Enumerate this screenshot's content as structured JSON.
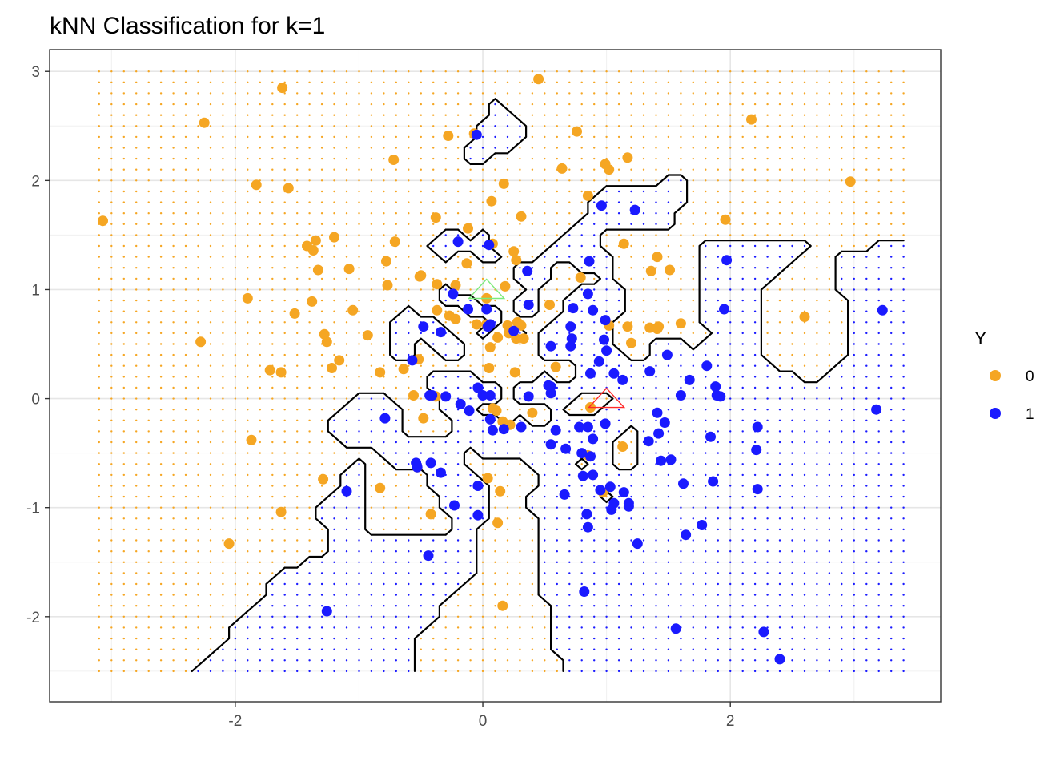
{
  "chart_data": {
    "type": "scatter",
    "title": "kNN Classification for k=1",
    "xlabel": "",
    "ylabel": "",
    "xlim": [
      -3.5,
      3.7
    ],
    "ylim": [
      -2.78,
      3.2
    ],
    "x_ticks": [
      -2,
      0,
      2
    ],
    "x_tick_labels": [
      "-2",
      "0",
      "2"
    ],
    "y_ticks": [
      -2,
      -1,
      0,
      1,
      2,
      3
    ],
    "y_tick_labels": [
      "-2",
      "-1",
      "0",
      "1",
      "2",
      "3"
    ],
    "grid": true,
    "theme": "black-and-white panel with light grey grid",
    "legend": {
      "title": "Y",
      "placement": "right",
      "entries": [
        {
          "label": "0",
          "color": "#F5A623"
        },
        {
          "label": "1",
          "color": "#1A1AFF"
        }
      ]
    },
    "colors": {
      "class0": "#F5A623",
      "class1": "#1A1AFF",
      "boundary": "#000000",
      "test_green": "#7CEB7C",
      "test_red": "#FF2A2A"
    },
    "grid_points": {
      "x_start": -3.1,
      "x_step": 0.1,
      "x_count": 66,
      "y_start": -2.5,
      "y_step": 0.1,
      "y_count": 56,
      "note_rule": "each background dot is colored by the 1-nearest-neighbour class of the training points"
    },
    "test_points": [
      {
        "x": 0.03,
        "y": 1.0,
        "marker": "open-triangle",
        "color": "#7CEB7C"
      },
      {
        "x": 1.0,
        "y": 0.0,
        "marker": "open-triangle",
        "color": "#FF2A2A"
      }
    ],
    "series": [
      {
        "name": "0",
        "points": [
          [
            -3.07,
            1.63
          ],
          [
            -2.25,
            2.53
          ],
          [
            -1.62,
            2.85
          ],
          [
            -1.83,
            1.96
          ],
          [
            -1.57,
            1.93
          ],
          [
            -0.72,
            2.19
          ],
          [
            -0.28,
            2.41
          ],
          [
            -0.07,
            2.43
          ],
          [
            0.45,
            2.93
          ],
          [
            0.76,
            2.45
          ],
          [
            -1.9,
            0.92
          ],
          [
            -1.63,
            0.24
          ],
          [
            -1.72,
            0.26
          ],
          [
            -2.28,
            0.52
          ],
          [
            -1.52,
            0.78
          ],
          [
            -1.42,
            1.4
          ],
          [
            -1.35,
            1.45
          ],
          [
            -1.33,
            1.18
          ],
          [
            -1.37,
            1.36
          ],
          [
            -1.2,
            1.48
          ],
          [
            -1.08,
            1.19
          ],
          [
            -1.38,
            0.89
          ],
          [
            -1.28,
            0.59
          ],
          [
            -1.26,
            0.52
          ],
          [
            -1.22,
            0.28
          ],
          [
            -1.16,
            0.35
          ],
          [
            -1.05,
            0.81
          ],
          [
            -0.93,
            0.58
          ],
          [
            -0.78,
            1.26
          ],
          [
            -0.77,
            1.04
          ],
          [
            -0.71,
            1.44
          ],
          [
            -0.51,
            1.12
          ],
          [
            -0.5,
            1.13
          ],
          [
            -0.38,
            1.66
          ],
          [
            -0.37,
            1.05
          ],
          [
            -0.37,
            0.81
          ],
          [
            -0.22,
            1.04
          ],
          [
            -0.12,
            1.56
          ],
          [
            -0.13,
            1.24
          ],
          [
            -0.05,
            0.68
          ],
          [
            0.07,
            1.81
          ],
          [
            0.17,
            1.97
          ],
          [
            0.31,
            1.67
          ],
          [
            0.08,
            1.42
          ],
          [
            0.27,
            1.27
          ],
          [
            0.25,
            1.35
          ],
          [
            0.18,
            1.03
          ],
          [
            0.03,
            0.92
          ],
          [
            0.03,
            0.68
          ],
          [
            0.06,
            0.47
          ],
          [
            0.12,
            0.56
          ],
          [
            0.2,
            0.67
          ],
          [
            0.28,
            0.7
          ],
          [
            0.33,
            0.55
          ],
          [
            0.31,
            0.67
          ],
          [
            0.27,
            0.55
          ],
          [
            0.05,
            0.28
          ],
          [
            0.21,
            0.6
          ],
          [
            0.26,
            0.24
          ],
          [
            0.54,
            0.86
          ],
          [
            0.79,
            1.11
          ],
          [
            0.59,
            0.29
          ],
          [
            0.85,
            1.86
          ],
          [
            0.64,
            2.11
          ],
          [
            0.99,
            2.15
          ],
          [
            1.02,
            2.1
          ],
          [
            1.17,
            2.21
          ],
          [
            1.41,
            1.3
          ],
          [
            1.14,
            1.42
          ],
          [
            1.36,
            1.17
          ],
          [
            1.51,
            1.18
          ],
          [
            1.35,
            0.65
          ],
          [
            1.42,
            0.66
          ],
          [
            1.6,
            0.69
          ],
          [
            1.41,
            0.64
          ],
          [
            1.02,
            0.67
          ],
          [
            1.17,
            0.66
          ],
          [
            1.2,
            0.51
          ],
          [
            1.96,
            1.64
          ],
          [
            2.17,
            2.56
          ],
          [
            2.97,
            1.99
          ],
          [
            2.6,
            0.75
          ],
          [
            -0.27,
            0.76
          ],
          [
            -0.22,
            0.73
          ],
          [
            -0.52,
            0.36
          ],
          [
            -0.64,
            0.27
          ],
          [
            -0.56,
            0.03
          ],
          [
            -0.38,
            0.02
          ],
          [
            -0.48,
            -0.18
          ],
          [
            -0.83,
            0.24
          ],
          [
            0.08,
            -0.09
          ],
          [
            0.22,
            -0.24
          ],
          [
            0.04,
            -0.73
          ],
          [
            0.14,
            -0.85
          ],
          [
            0.12,
            -1.14
          ],
          [
            0.16,
            -1.9
          ],
          [
            -1.87,
            -0.38
          ],
          [
            -1.63,
            -1.04
          ],
          [
            -1.29,
            -0.74
          ],
          [
            -0.83,
            -0.82
          ],
          [
            -0.53,
            -0.63
          ],
          [
            -0.42,
            -1.06
          ],
          [
            -2.05,
            -1.33
          ],
          [
            0.85,
            -0.52
          ],
          [
            0.97,
            -0.86
          ],
          [
            1.13,
            -0.44
          ],
          [
            0.87,
            -0.08
          ],
          [
            0.4,
            -0.13
          ],
          [
            0.11,
            -0.11
          ],
          [
            0.16,
            -0.21
          ]
        ]
      },
      {
        "name": "1",
        "points": [
          [
            -0.05,
            2.42
          ],
          [
            0.96,
            1.77
          ],
          [
            1.23,
            1.73
          ],
          [
            0.86,
            1.26
          ],
          [
            1.97,
            1.27
          ],
          [
            3.23,
            0.81
          ],
          [
            1.95,
            0.82
          ],
          [
            2.22,
            -0.26
          ],
          [
            3.18,
            -0.1
          ],
          [
            2.21,
            -0.47
          ],
          [
            2.22,
            -0.83
          ],
          [
            2.27,
            -2.14
          ],
          [
            2.4,
            -2.39
          ],
          [
            1.56,
            -2.11
          ],
          [
            1.64,
            -1.25
          ],
          [
            1.77,
            -1.16
          ],
          [
            1.86,
            -0.76
          ],
          [
            1.84,
            -0.35
          ],
          [
            1.62,
            -0.78
          ],
          [
            1.52,
            -0.56
          ],
          [
            1.44,
            -0.57
          ],
          [
            1.34,
            -0.39
          ],
          [
            1.42,
            -0.32
          ],
          [
            1.47,
            -0.22
          ],
          [
            1.41,
            -0.13
          ],
          [
            1.35,
            0.25
          ],
          [
            1.49,
            0.4
          ],
          [
            1.67,
            0.17
          ],
          [
            1.81,
            0.3
          ],
          [
            1.88,
            0.11
          ],
          [
            1.89,
            0.03
          ],
          [
            1.92,
            0.02
          ],
          [
            1.6,
            0.03
          ],
          [
            1.13,
            0.17
          ],
          [
            1.06,
            0.23
          ],
          [
            0.94,
            0.34
          ],
          [
            0.87,
            0.23
          ],
          [
            1.0,
            0.44
          ],
          [
            0.98,
            0.54
          ],
          [
            0.99,
            0.72
          ],
          [
            0.89,
            0.81
          ],
          [
            0.85,
            0.96
          ],
          [
            0.73,
            0.83
          ],
          [
            0.71,
            0.66
          ],
          [
            0.55,
            0.11
          ],
          [
            0.53,
            0.12
          ],
          [
            0.55,
            0.05
          ],
          [
            0.59,
            -0.29
          ],
          [
            0.67,
            -0.46
          ],
          [
            0.78,
            -0.26
          ],
          [
            0.85,
            -0.26
          ],
          [
            0.89,
            -0.37
          ],
          [
            0.8,
            -0.5
          ],
          [
            0.81,
            -0.71
          ],
          [
            0.89,
            -0.7
          ],
          [
            0.95,
            -0.84
          ],
          [
            0.99,
            -0.23
          ],
          [
            1.04,
            -1.02
          ],
          [
            1.18,
            -0.96
          ],
          [
            1.25,
            -1.33
          ],
          [
            1.18,
            -0.99
          ],
          [
            0.84,
            -1.06
          ],
          [
            0.85,
            -1.18
          ],
          [
            0.82,
            -1.77
          ],
          [
            0.36,
            1.17
          ],
          [
            0.37,
            0.86
          ],
          [
            0.25,
            0.62
          ],
          [
            0.55,
            0.48
          ],
          [
            0.71,
            0.48
          ],
          [
            0.72,
            0.55
          ],
          [
            -0.2,
            1.44
          ],
          [
            0.05,
            1.41
          ],
          [
            -0.24,
            0.96
          ],
          [
            0.03,
            0.82
          ],
          [
            -0.12,
            0.82
          ],
          [
            0.04,
            0.66
          ],
          [
            0.06,
            0.68
          ],
          [
            -0.34,
            0.61
          ],
          [
            -0.48,
            0.66
          ],
          [
            -0.57,
            0.35
          ],
          [
            -0.41,
            0.03
          ],
          [
            -0.18,
            -0.05
          ],
          [
            -0.11,
            -0.11
          ],
          [
            -0.04,
            0.1
          ],
          [
            0.06,
            0.03
          ],
          [
            0.06,
            -0.19
          ],
          [
            0.17,
            -0.28
          ],
          [
            0.31,
            -0.26
          ],
          [
            0.37,
            0.02
          ],
          [
            0.55,
            -0.42
          ],
          [
            -0.04,
            -0.8
          ],
          [
            -0.04,
            -1.07
          ],
          [
            -0.23,
            -0.98
          ],
          [
            -0.34,
            -0.68
          ],
          [
            -0.42,
            -0.59
          ],
          [
            -0.53,
            -0.63
          ],
          [
            -0.54,
            -0.59
          ],
          [
            -0.79,
            -0.18
          ],
          [
            -0.44,
            -1.44
          ],
          [
            -1.1,
            -0.85
          ],
          [
            -1.26,
            -1.95
          ],
          [
            -0.43,
            0.03
          ],
          [
            -0.3,
            0.02
          ],
          [
            0.0,
            0.03
          ],
          [
            0.08,
            -0.29
          ],
          [
            1.14,
            -0.86
          ],
          [
            1.06,
            -0.96
          ],
          [
            1.03,
            -0.81
          ],
          [
            0.66,
            -0.88
          ],
          [
            0.87,
            -0.53
          ]
        ]
      }
    ]
  }
}
